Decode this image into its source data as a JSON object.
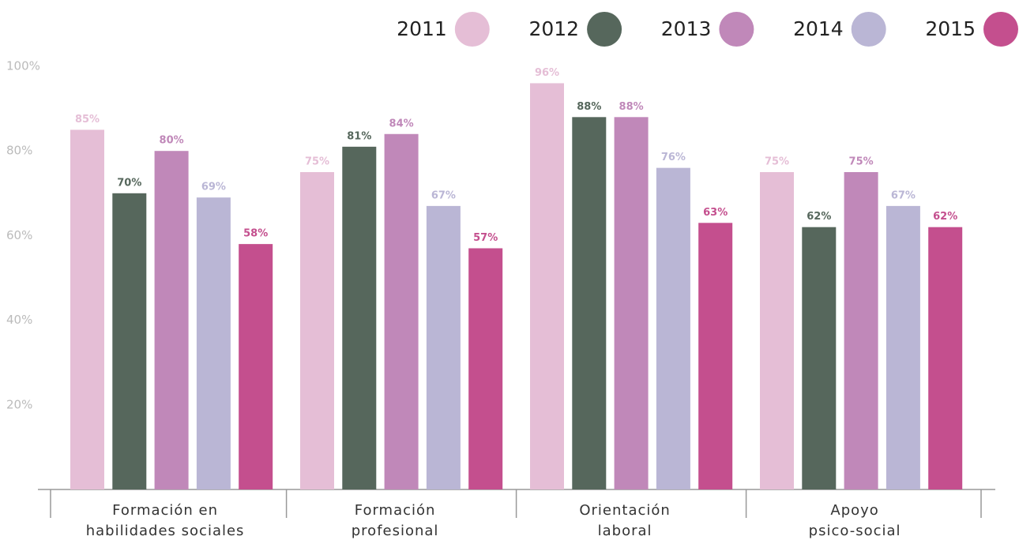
{
  "chart_data": {
    "type": "bar",
    "categories": [
      "Formación en\nhabilidades sociales",
      "Formación\nprofesional",
      "Orientación\nlaboral",
      "Apoyo\npsico-social"
    ],
    "series": [
      {
        "name": "2011",
        "color": "#e5bed6",
        "values": [
          85,
          75,
          96,
          75
        ],
        "value_labels": [
          "85%",
          "75%",
          "96%",
          "75%"
        ]
      },
      {
        "name": "2012",
        "color": "#56675c",
        "values": [
          70,
          81,
          88,
          62
        ],
        "value_labels": [
          "70%",
          "81%",
          "88%",
          "62%"
        ]
      },
      {
        "name": "2013",
        "color": "#c088b9",
        "values": [
          80,
          84,
          88,
          75
        ],
        "value_labels": [
          "80%",
          "84%",
          "88%",
          "75%"
        ]
      },
      {
        "name": "2014",
        "color": "#bab6d5",
        "values": [
          69,
          67,
          76,
          67
        ],
        "value_labels": [
          "69%",
          "67%",
          "76%",
          "67%"
        ]
      },
      {
        "name": "2015",
        "color": "#c44f8e",
        "values": [
          58,
          57,
          63,
          62
        ],
        "value_labels": [
          "58%",
          "57%",
          "63%",
          "62%"
        ]
      }
    ],
    "ylim": [
      0,
      100
    ],
    "yticks": [
      {
        "value": 20,
        "label": "20%"
      },
      {
        "value": 40,
        "label": "40%"
      },
      {
        "value": 60,
        "label": "60%"
      },
      {
        "value": 80,
        "label": "80%"
      },
      {
        "value": 100,
        "label": "100%"
      }
    ],
    "grid": false,
    "legend": "top-right"
  }
}
